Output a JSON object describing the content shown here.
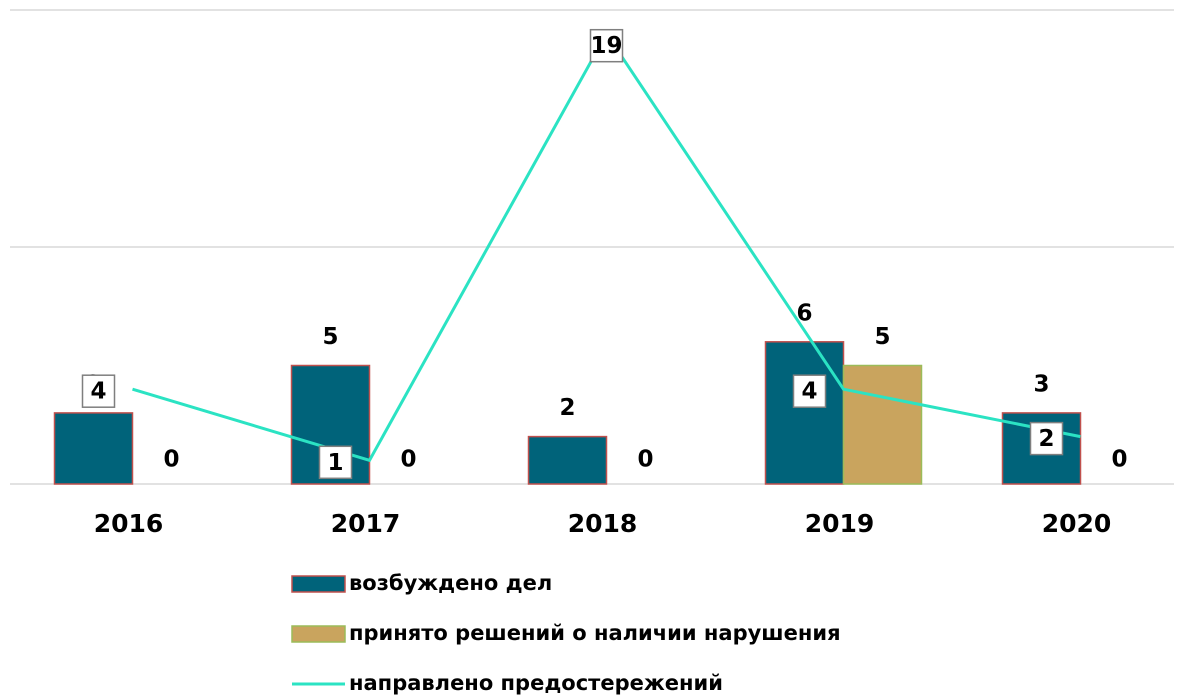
{
  "chart_data": {
    "type": "bar",
    "categories": [
      "2016",
      "2017",
      "2018",
      "2019",
      "2020"
    ],
    "series": [
      {
        "name": "возбуждено дел",
        "type": "bar",
        "color": "#00637a",
        "values": [
          3,
          5,
          2,
          6,
          3
        ]
      },
      {
        "name": "принято решений о наличии нарушения",
        "type": "bar",
        "color": "#c9a45e",
        "values": [
          0,
          0,
          0,
          5,
          0
        ]
      },
      {
        "name": "направлено предостережений",
        "type": "line",
        "color": "#2be3c3",
        "values": [
          4,
          1,
          19,
          4,
          2
        ]
      }
    ],
    "ylim": [
      0,
      20
    ],
    "yticks": [
      0,
      10,
      20
    ],
    "grid": true,
    "legend": "bottom"
  }
}
